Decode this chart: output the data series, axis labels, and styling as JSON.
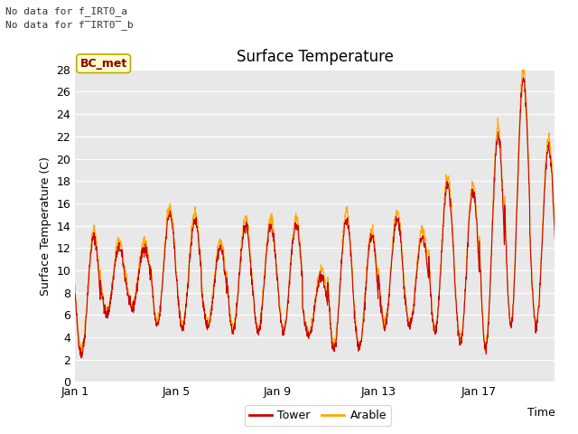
{
  "title": "Surface Temperature",
  "ylabel": "Surface Temperature (C)",
  "xlabel": "Time",
  "ylim": [
    0,
    28
  ],
  "xtick_positions": [
    0,
    4,
    8,
    12,
    16
  ],
  "xtick_labels": [
    "Jan 1",
    "Jan 5",
    "Jan 9",
    "Jan 13",
    "Jan 17"
  ],
  "tower_color": "#cc0000",
  "arable_color": "#ffaa00",
  "bg_color": "#e8e8e8",
  "grid_color": "#ffffff",
  "bc_met_label": "BC_met",
  "legend_tower": "Tower",
  "legend_arable": "Arable",
  "n_days": 19,
  "pts_per_day": 96,
  "day_mins_base": [
    2.5,
    6.0,
    6.5,
    5.0,
    4.8,
    5.0,
    4.5,
    4.5,
    4.5,
    4.0,
    3.0,
    3.0,
    5.0,
    5.0,
    4.5,
    3.5,
    3.0,
    5.0,
    5.0
  ],
  "day_maxs_base": [
    13.0,
    12.0,
    12.0,
    15.0,
    14.5,
    12.0,
    14.0,
    14.0,
    14.0,
    9.5,
    14.5,
    13.0,
    14.5,
    13.0,
    17.5,
    17.0,
    22.0,
    27.0,
    21.0
  ]
}
